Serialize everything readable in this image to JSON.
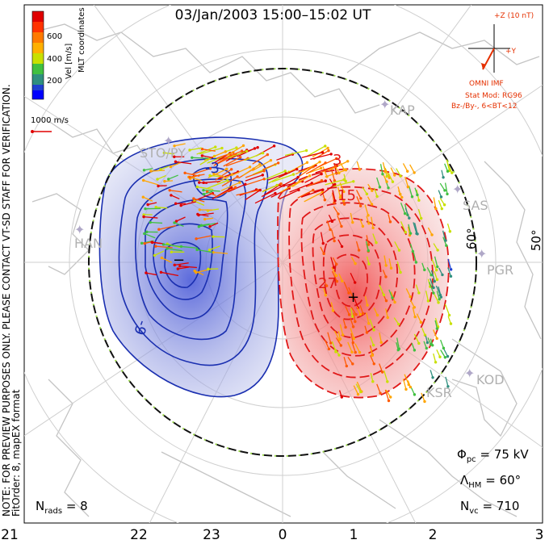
{
  "title": "03/Jan/2003 15:00–15:02 UT",
  "note_line1": "NOTE: FOR PREVIEW PURPOSES ONLY. PLEASE CONTACT VT-SD STAFF FOR VERIFICATION.",
  "note_line2": "FitOrder: 8, mapEX format",
  "coord_system": "MLT coordinates",
  "color_scale": {
    "label": "Vel [m/s]",
    "ticks": [
      "600",
      "400",
      "200"
    ],
    "colors": [
      "#e00000",
      "#ff5a00",
      "#ffa500",
      "#c8e000",
      "#40c040",
      "#2f8f7f",
      "#2040d0",
      "#0000ff"
    ]
  },
  "ref_vector": "1000 m/s",
  "imf": {
    "z_label": "+Z (10 nT)",
    "y_label": "+Y",
    "source": "OMNI IMF",
    "stat_mod": "Stat Mod: RG96",
    "condition": "Bz-/By-, 6<BT<12"
  },
  "mlt_labels": [
    "21",
    "22",
    "23",
    "0",
    "1",
    "2",
    "3"
  ],
  "lat_labels": [
    "60°",
    "50°"
  ],
  "radars": [
    "KAP",
    "SAS",
    "PGR",
    "KOD",
    "KSR",
    "STO/PY",
    "HAN"
  ],
  "contour_labels": [
    "-3",
    "3",
    "15",
    "27",
    "-9"
  ],
  "extrema": {
    "min": "−",
    "max": "+"
  },
  "stats": {
    "phi_pc": "75 kV",
    "lambda_hm": "60°",
    "n_vc": "710",
    "n_rads": "8"
  },
  "symbols": {
    "phi": "Φ",
    "phi_sub": "pc",
    "lambda": "Λ",
    "lambda_sub": "HM",
    "n": "N",
    "n_vc_sub": "vc",
    "n_rads_sub": "rads",
    "equals": "="
  },
  "colors": {
    "negative": "#1a2fb0",
    "positive": "#e01818",
    "hmb": "#111111",
    "grid": "#c8c8c8",
    "coast": "#c0c0c0"
  }
}
